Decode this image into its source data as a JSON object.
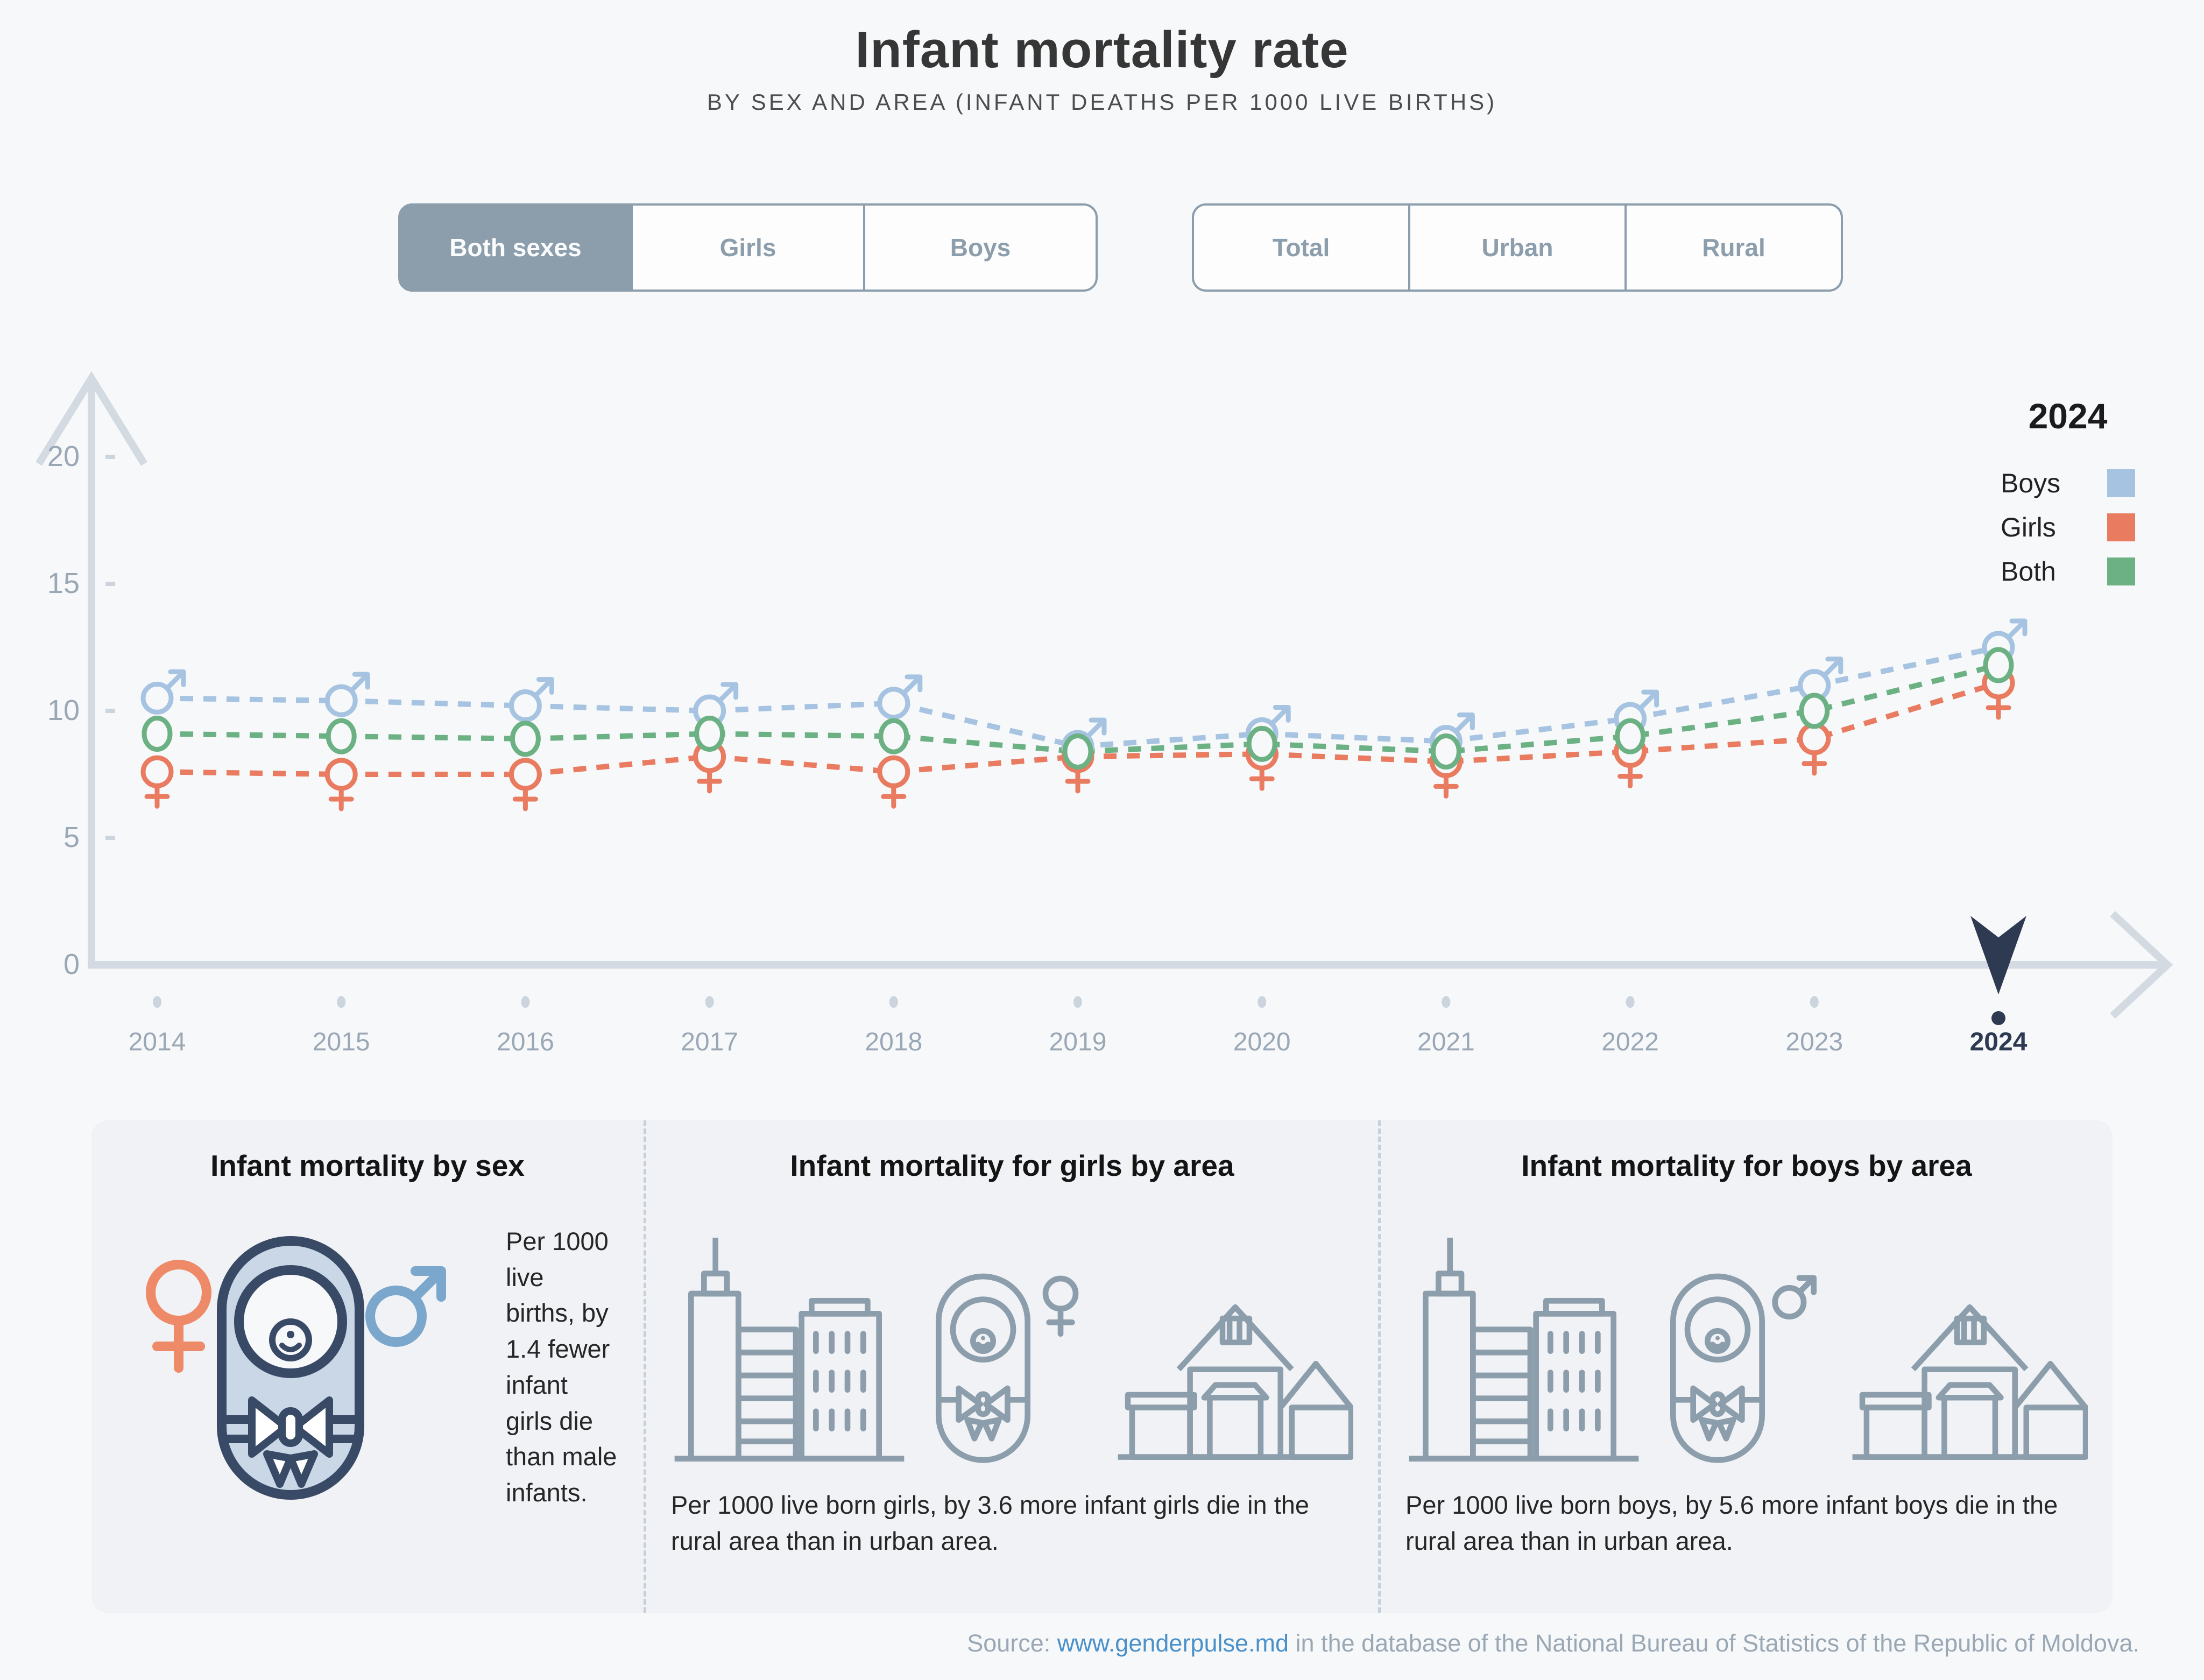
{
  "header": {
    "title": "Infant mortality rate",
    "subtitle": "BY SEX AND AREA (INFANT DEATHS PER 1000 LIVE BIRTHS)"
  },
  "filters": {
    "sex": {
      "options": [
        "Both sexes",
        "Girls",
        "Boys"
      ],
      "selected": "Both sexes"
    },
    "area": {
      "options": [
        "Total",
        "Urban",
        "Rural"
      ],
      "selected": ""
    }
  },
  "legend": {
    "title": "2024",
    "entries": [
      {
        "label": "Boys"
      },
      {
        "label": "Girls"
      },
      {
        "label": "Both"
      }
    ]
  },
  "chart_data": {
    "type": "line",
    "title": "Infant mortality rate by sex, 2014-2024",
    "x": [
      2014,
      2015,
      2016,
      2017,
      2018,
      2019,
      2020,
      2021,
      2022,
      2023,
      2024
    ],
    "ylim": [
      0,
      20
    ],
    "yticks": [
      0,
      5,
      10,
      15,
      20
    ],
    "grid": false,
    "legend_position": "top-right",
    "highlight_x": 2024,
    "series": [
      {
        "name": "Boys",
        "marker": "male",
        "color": "#a6c3e1",
        "values": [
          10.5,
          10.4,
          10.2,
          10.0,
          10.3,
          8.6,
          9.1,
          8.8,
          9.7,
          11.0,
          12.5
        ]
      },
      {
        "name": "Girls",
        "marker": "female",
        "color": "#e87b60",
        "values": [
          7.6,
          7.5,
          7.5,
          8.2,
          7.6,
          8.2,
          8.3,
          8.0,
          8.4,
          8.9,
          11.1
        ]
      },
      {
        "name": "Both",
        "marker": "circle",
        "color": "#6cb183",
        "values": [
          9.1,
          9.0,
          8.9,
          9.1,
          9.0,
          8.4,
          8.7,
          8.4,
          9.0,
          10.0,
          11.8
        ]
      }
    ]
  },
  "cards": [
    {
      "title": "Infant mortality by sex",
      "text": "Per 1000 live births, by 1.4 fewer infant girls die than male infants."
    },
    {
      "title": "Infant mortality for girls by area",
      "text": "Per 1000 live born girls, by 3.6 more infant girls die in the rural area than in urban area."
    },
    {
      "title": "Infant mortality for boys by area",
      "text": "Per 1000 live born boys, by 5.6 more infant boys die in the rural area than in urban area."
    }
  ],
  "source": {
    "prefix": "Source: ",
    "link": "www.genderpulse.md",
    "suffix": " in the database of the National Bureau of Statistics of the Republic of Moldova."
  },
  "colors": {
    "accent_slate": "#8c9dab",
    "axis_gray": "#d3dae2",
    "label_gray": "#9aa7b5",
    "navy": "#2e3a52",
    "boys_blue": "#a6c3e1",
    "girls_coral": "#e87b60",
    "both_green": "#6cb183",
    "link_blue": "#4a90c9"
  }
}
